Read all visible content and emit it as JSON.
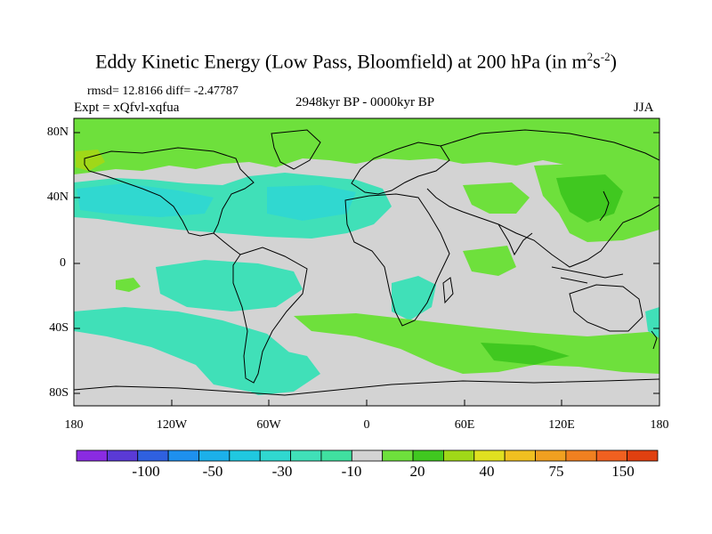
{
  "title": {
    "main": "Eddy Kinetic Energy (Low Pass, Bloomfield) at 200 hPa (in m",
    "sup1": "2",
    "mid": "s",
    "sup2": "-2",
    "end": ")"
  },
  "stats": "rmsd= 12.8166 diff= -2.47787",
  "expt": "Expt = xQfvl-xqfua",
  "period": "2948kyr BP - 0000kyr BP",
  "season": "JJA",
  "axes": {
    "y_labels": [
      "80N",
      "40N",
      "0",
      "40S",
      "80S"
    ],
    "x_labels": [
      "180",
      "120W",
      "60W",
      "0",
      "60E",
      "120E",
      "180"
    ]
  },
  "colorbar": {
    "labels": [
      "-100",
      "-50",
      "-30",
      "-10",
      "20",
      "40",
      "75",
      "150"
    ],
    "colors": [
      "#8a2be2",
      "#5a3ad6",
      "#2f60e0",
      "#1e90ee",
      "#1cb0ea",
      "#20c8e0",
      "#30d8d0",
      "#40e0b8",
      "#40e0a0",
      "#d3d3d3",
      "#6ee03c",
      "#40c820",
      "#a0d818",
      "#e0e020",
      "#f0c020",
      "#f0a020",
      "#f08020",
      "#f06020",
      "#e04010"
    ]
  },
  "colors": {
    "land_neutral": "#d3d3d3",
    "green": "#6ee03c",
    "green_dark": "#40c820",
    "cyan": "#40e0b8",
    "cyan_light": "#30d8d0",
    "coast": "#000000"
  }
}
